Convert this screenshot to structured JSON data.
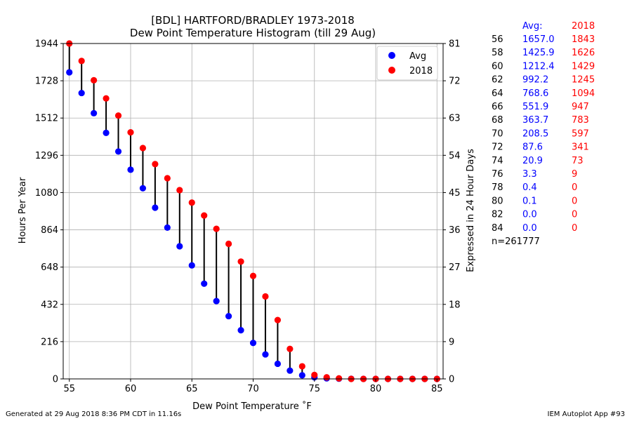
{
  "chart_data": {
    "type": "scatter",
    "title_line1": "[BDL] HARTFORD/BRADLEY 1973-2018",
    "title_line2": "Dew Point Temperature Histogram (till 29 Aug)",
    "xlabel": "Dew Point Temperature $^\\circ$F",
    "xlabel_display": "Dew Point Temperature ˚F",
    "ylabel": "Hours Per Year",
    "ylabel_right": "Expressed in 24 Hour Days",
    "xlim": [
      54.5,
      85.5
    ],
    "ylim": [
      0,
      1944
    ],
    "xticks": [
      "55",
      "60",
      "65",
      "70",
      "75",
      "80",
      "85"
    ],
    "xtick_values": [
      55,
      60,
      65,
      70,
      75,
      80,
      85
    ],
    "yticks": [
      "0",
      "216",
      "432",
      "648",
      "864",
      "1080",
      "1296",
      "1512",
      "1728",
      "1944"
    ],
    "ytick_values": [
      0,
      216,
      432,
      648,
      864,
      1080,
      1296,
      1512,
      1728,
      1944
    ],
    "yticks_right": [
      "0",
      "9",
      "18",
      "27",
      "36",
      "45",
      "54",
      "63",
      "72",
      "81"
    ],
    "grid": true,
    "legend_position": "top-right",
    "x": [
      55,
      56,
      57,
      58,
      59,
      60,
      61,
      62,
      63,
      64,
      65,
      66,
      67,
      68,
      69,
      70,
      71,
      72,
      73,
      74,
      75,
      76,
      77,
      78,
      79,
      80,
      81,
      82,
      83,
      84,
      85
    ],
    "series": [
      {
        "name": "Avg",
        "color": "#0000ff",
        "values": [
          1777,
          1657.0,
          1540,
          1425.9,
          1318,
          1212.4,
          1105,
          992.2,
          877,
          768.6,
          658,
          551.9,
          451,
          363.7,
          282,
          208.5,
          142,
          87.6,
          48,
          20.9,
          9,
          3.3,
          1.2,
          0.4,
          0.2,
          0.1,
          0.0,
          0.0,
          0.0,
          0.0,
          0.0
        ]
      },
      {
        "name": "2018",
        "color": "#ff0000",
        "values": [
          1944,
          1843,
          1731,
          1626,
          1526,
          1429,
          1338,
          1245,
          1163,
          1094,
          1022,
          947,
          870,
          783,
          680,
          597,
          478,
          341,
          174,
          73,
          23,
          9,
          3,
          0,
          0,
          0,
          0,
          0,
          0,
          0,
          0
        ]
      }
    ]
  },
  "table": {
    "header_avg": "Avg:",
    "header_year": "2018",
    "rows": [
      {
        "t": "56",
        "avg": "1657.0",
        "year": "1843"
      },
      {
        "t": "58",
        "avg": "1425.9",
        "year": "1626"
      },
      {
        "t": "60",
        "avg": "1212.4",
        "year": "1429"
      },
      {
        "t": "62",
        "avg": "992.2",
        "year": "1245"
      },
      {
        "t": "64",
        "avg": "768.6",
        "year": "1094"
      },
      {
        "t": "66",
        "avg": "551.9",
        "year": "947"
      },
      {
        "t": "68",
        "avg": "363.7",
        "year": "783"
      },
      {
        "t": "70",
        "avg": "208.5",
        "year": "597"
      },
      {
        "t": "72",
        "avg": "87.6",
        "year": "341"
      },
      {
        "t": "74",
        "avg": "20.9",
        "year": "73"
      },
      {
        "t": "76",
        "avg": "3.3",
        "year": "9"
      },
      {
        "t": "78",
        "avg": "0.4",
        "year": "0"
      },
      {
        "t": "80",
        "avg": "0.1",
        "year": "0"
      },
      {
        "t": "82",
        "avg": "0.0",
        "year": "0"
      },
      {
        "t": "84",
        "avg": "0.0",
        "year": "0"
      }
    ],
    "count": "n=261777"
  },
  "footer": {
    "generated": "Generated at 29 Aug 2018 8:36 PM CDT in 11.16s",
    "app": "IEM Autoplot App #93"
  }
}
